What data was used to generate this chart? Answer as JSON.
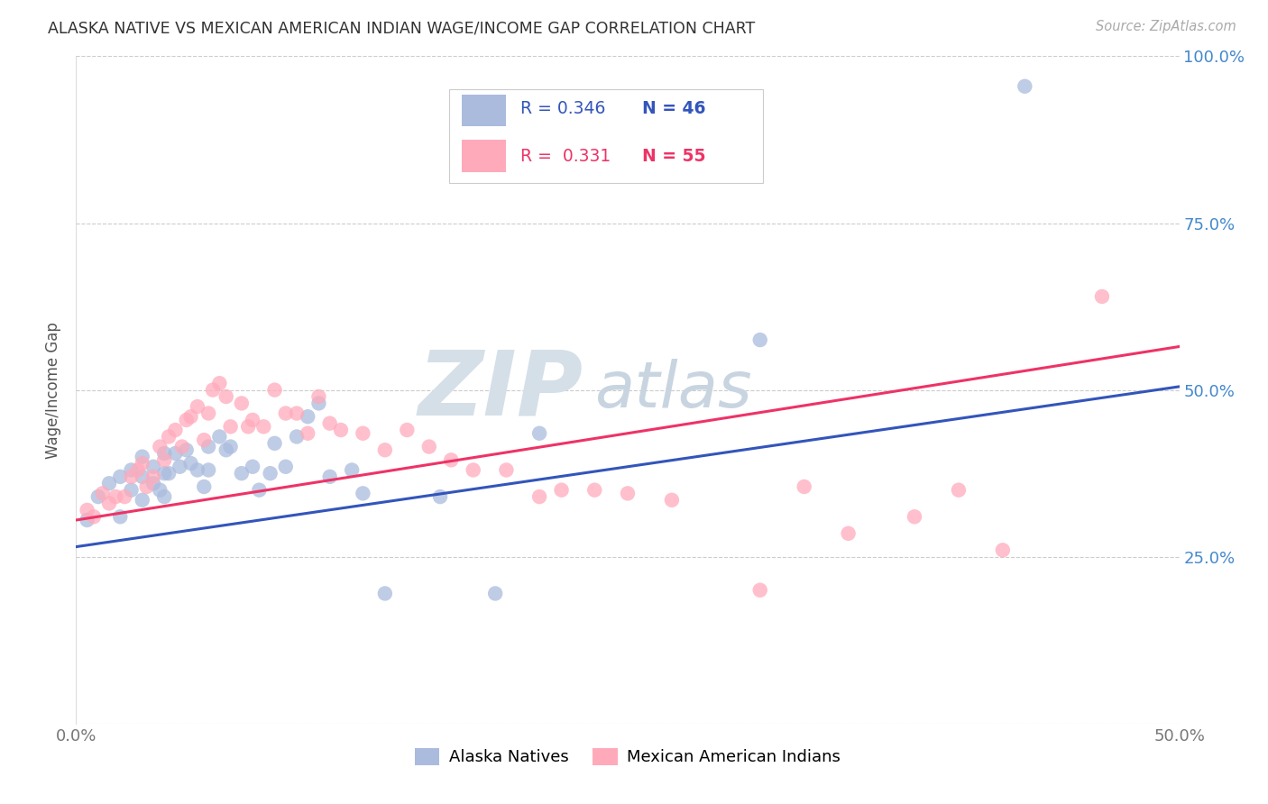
{
  "title": "ALASKA NATIVE VS MEXICAN AMERICAN INDIAN WAGE/INCOME GAP CORRELATION CHART",
  "source": "Source: ZipAtlas.com",
  "ylabel": "Wage/Income Gap",
  "xlim": [
    0.0,
    0.5
  ],
  "ylim": [
    0.0,
    1.0
  ],
  "alaska_color": "#aabbdd",
  "mexican_color": "#ffaabb",
  "alaska_line_color": "#3355bb",
  "mexican_line_color": "#ee3366",
  "watermark_zip": "ZIP",
  "watermark_atlas": "atlas",
  "legend_r1": "R = 0.346",
  "legend_n1": "N = 46",
  "legend_r2": "R =  0.331",
  "legend_n2": "N = 55",
  "alaska_scatter_x": [
    0.005,
    0.01,
    0.015,
    0.02,
    0.02,
    0.025,
    0.025,
    0.03,
    0.03,
    0.03,
    0.035,
    0.035,
    0.038,
    0.04,
    0.04,
    0.04,
    0.042,
    0.045,
    0.047,
    0.05,
    0.052,
    0.055,
    0.058,
    0.06,
    0.06,
    0.065,
    0.068,
    0.07,
    0.075,
    0.08,
    0.083,
    0.088,
    0.09,
    0.095,
    0.1,
    0.105,
    0.11,
    0.115,
    0.125,
    0.13,
    0.14,
    0.165,
    0.19,
    0.21,
    0.31,
    0.43
  ],
  "alaska_scatter_y": [
    0.305,
    0.34,
    0.36,
    0.37,
    0.31,
    0.38,
    0.35,
    0.4,
    0.37,
    0.335,
    0.385,
    0.36,
    0.35,
    0.405,
    0.375,
    0.34,
    0.375,
    0.405,
    0.385,
    0.41,
    0.39,
    0.38,
    0.355,
    0.415,
    0.38,
    0.43,
    0.41,
    0.415,
    0.375,
    0.385,
    0.35,
    0.375,
    0.42,
    0.385,
    0.43,
    0.46,
    0.48,
    0.37,
    0.38,
    0.345,
    0.195,
    0.34,
    0.195,
    0.435,
    0.575,
    0.955
  ],
  "mexican_scatter_x": [
    0.005,
    0.008,
    0.012,
    0.015,
    0.018,
    0.022,
    0.025,
    0.028,
    0.03,
    0.032,
    0.035,
    0.038,
    0.04,
    0.042,
    0.045,
    0.048,
    0.05,
    0.052,
    0.055,
    0.058,
    0.06,
    0.062,
    0.065,
    0.068,
    0.07,
    0.075,
    0.078,
    0.08,
    0.085,
    0.09,
    0.095,
    0.1,
    0.105,
    0.11,
    0.115,
    0.12,
    0.13,
    0.14,
    0.15,
    0.16,
    0.17,
    0.18,
    0.195,
    0.21,
    0.22,
    0.235,
    0.25,
    0.27,
    0.31,
    0.33,
    0.35,
    0.38,
    0.4,
    0.42,
    0.465
  ],
  "mexican_scatter_y": [
    0.32,
    0.31,
    0.345,
    0.33,
    0.34,
    0.34,
    0.37,
    0.38,
    0.39,
    0.355,
    0.37,
    0.415,
    0.395,
    0.43,
    0.44,
    0.415,
    0.455,
    0.46,
    0.475,
    0.425,
    0.465,
    0.5,
    0.51,
    0.49,
    0.445,
    0.48,
    0.445,
    0.455,
    0.445,
    0.5,
    0.465,
    0.465,
    0.435,
    0.49,
    0.45,
    0.44,
    0.435,
    0.41,
    0.44,
    0.415,
    0.395,
    0.38,
    0.38,
    0.34,
    0.35,
    0.35,
    0.345,
    0.335,
    0.2,
    0.355,
    0.285,
    0.31,
    0.35,
    0.26,
    0.64
  ],
  "alaska_trend_x": [
    0.0,
    0.5
  ],
  "alaska_trend_y": [
    0.265,
    0.505
  ],
  "mexican_trend_x": [
    0.0,
    0.5
  ],
  "mexican_trend_y": [
    0.305,
    0.565
  ]
}
